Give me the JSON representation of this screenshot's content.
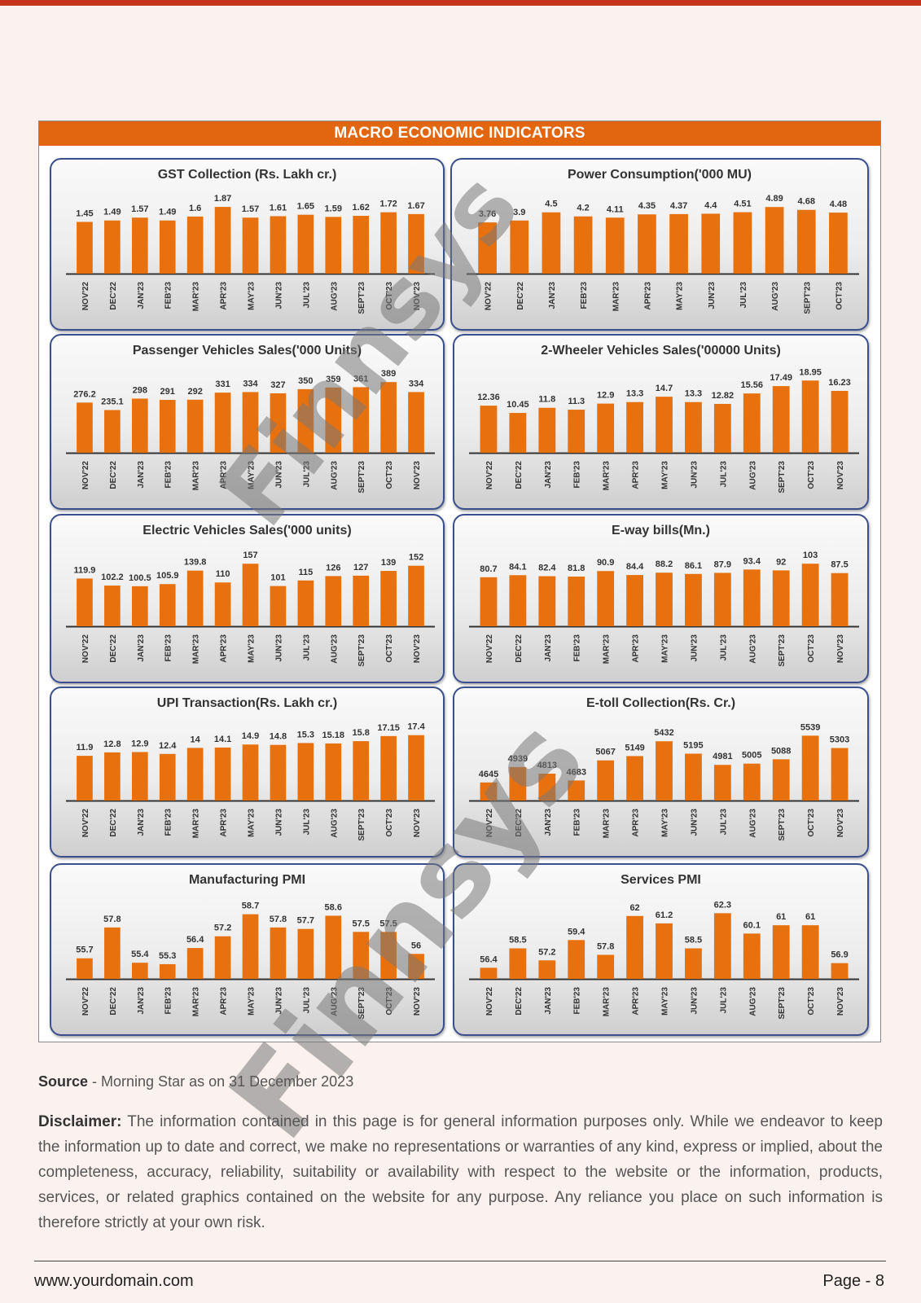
{
  "header": {
    "title": "MACRO ECONOMIC INDICATORS"
  },
  "watermark": {
    "text": "Finnsys"
  },
  "colors": {
    "bar": "#e8710f",
    "accent": "#e2660f",
    "panel_border": "#3a4f8c"
  },
  "chart_data": [
    {
      "type": "bar",
      "title": "GST Collection (Rs. Lakh cr.)",
      "categories": [
        "NOV'22",
        "DEC'22",
        "JAN'23",
        "FEB'23",
        "MAR'23",
        "APR'23",
        "MAY'23",
        "JUN'23",
        "JUL'23",
        "AUG'23",
        "SEPT'23",
        "OCT'23",
        "NOV'23"
      ],
      "values": [
        1.45,
        1.49,
        1.57,
        1.49,
        1.6,
        1.87,
        1.57,
        1.61,
        1.65,
        1.59,
        1.62,
        1.72,
        1.67
      ],
      "labels": [
        "1.45",
        "1.49",
        "1.57",
        "1.49",
        "1.6",
        "1.87",
        "1.57",
        "1.61",
        "1.65",
        "1.59",
        "1.62",
        "1.72",
        "1.67"
      ],
      "ylim": [
        0,
        2.1
      ]
    },
    {
      "type": "bar",
      "title": "Power Consumption('000 MU)",
      "categories": [
        "NOV'22",
        "DEC'22",
        "JAN'23",
        "FEB'23",
        "MAR'23",
        "APR'23",
        "MAY'23",
        "JUN'23",
        "JUL'23",
        "AUG'23",
        "SEPT'23",
        "OCT'23"
      ],
      "values": [
        3.76,
        3.9,
        4.5,
        4.2,
        4.11,
        4.35,
        4.37,
        4.4,
        4.51,
        4.89,
        4.68,
        4.48
      ],
      "labels": [
        "3.76",
        "3.9",
        "4.5",
        "4.2",
        "4.11",
        "4.35",
        "4.37",
        "4.4",
        "4.51",
        "4.89",
        "4.68",
        "4.48"
      ],
      "ylim": [
        0,
        5.5
      ]
    },
    {
      "type": "bar",
      "title": "Passenger Vehicles Sales('000 Units)",
      "categories": [
        "NOV'22",
        "DEC'22",
        "JAN'23",
        "FEB'23",
        "MAR'23",
        "APR'23",
        "MAY'23",
        "JUN'23",
        "JUL'23",
        "AUG'23",
        "SEPT'23",
        "OCT'23",
        "NOV'23"
      ],
      "values": [
        276.2,
        235.1,
        298,
        291,
        292,
        331,
        334,
        327,
        350,
        359,
        361,
        389,
        334
      ],
      "labels": [
        "276.2",
        "235.1",
        "298",
        "291",
        "292",
        "331",
        "334",
        "327",
        "350",
        "359",
        "361",
        "389",
        "334"
      ],
      "ylim": [
        0,
        430
      ]
    },
    {
      "type": "bar",
      "title": "2-Wheeler Vehicles Sales('00000 Units)",
      "categories": [
        "NOV'22",
        "DEC'22",
        "JAN'23",
        "FEB'23",
        "MAR'23",
        "APR'23",
        "MAY'23",
        "JUN'23",
        "JUL'23",
        "AUG'23",
        "SEPT'23",
        "OCT'23",
        "NOV'23"
      ],
      "values": [
        12.36,
        10.45,
        11.8,
        11.3,
        12.9,
        13.3,
        14.7,
        13.3,
        12.82,
        15.56,
        17.49,
        18.95,
        16.23
      ],
      "labels": [
        "12.36",
        "10.45",
        "11.8",
        "11.3",
        "12.9",
        "13.3",
        "14.7",
        "13.3",
        "12.82",
        "15.56",
        "17.49",
        "18.95",
        "16.23"
      ],
      "ylim": [
        0,
        20.5
      ]
    },
    {
      "type": "bar",
      "title": "Electric Vehicles Sales('000 units)",
      "categories": [
        "NOV'22",
        "DEC'22",
        "JAN'23",
        "FEB'23",
        "MAR'23",
        "APR'23",
        "MAY'23",
        "JUN'23",
        "JUL'23",
        "AUG'23",
        "SEPT'23",
        "OCT'23",
        "NOV'23"
      ],
      "values": [
        119.9,
        102.2,
        100.5,
        105.9,
        139.8,
        110,
        157,
        101,
        115,
        126,
        127,
        139,
        152
      ],
      "labels": [
        "119.9",
        "102.2",
        "100.5",
        "105.9",
        "139.8",
        "110",
        "157",
        "101",
        "115",
        "126",
        "127",
        "139",
        "152"
      ],
      "ylim": [
        0,
        180
      ]
    },
    {
      "type": "bar",
      "title": "E-way bills(Mn.)",
      "categories": [
        "NOV'22",
        "DEC'22",
        "JAN'23",
        "FEB'23",
        "MAR'23",
        "APR'23",
        "MAY'23",
        "JUN'23",
        "JUL'23",
        "AUG'23",
        "SEPT'23",
        "OCT'23",
        "NOV'23"
      ],
      "values": [
        80.7,
        84.1,
        82.4,
        81.8,
        90.9,
        84.4,
        88.2,
        86.1,
        87.9,
        93.4,
        92,
        103,
        87.5
      ],
      "labels": [
        "80.7",
        "84.1",
        "82.4",
        "81.8",
        "90.9",
        "84.4",
        "88.2",
        "86.1",
        "87.9",
        "93.4",
        "92",
        "103",
        "87.5"
      ],
      "ylim": [
        0,
        118
      ]
    },
    {
      "type": "bar",
      "title": "UPI Transaction(Rs. Lakh cr.)",
      "categories": [
        "NOV'22",
        "DEC'22",
        "JAN'23",
        "FEB'23",
        "MAR'23",
        "APR'23",
        "MAY'23",
        "JUN'23",
        "JUL'23",
        "AUG'23",
        "SEPT'23",
        "OCT'23",
        "NOV'23"
      ],
      "values": [
        11.9,
        12.8,
        12.9,
        12.4,
        14,
        14.1,
        14.9,
        14.8,
        15.3,
        15.18,
        15.8,
        17.15,
        17.4
      ],
      "labels": [
        "11.9",
        "12.8",
        "12.9",
        "12.4",
        "14",
        "14.1",
        "14.9",
        "14.8",
        "15.3",
        "15.18",
        "15.8",
        "17.15",
        "17.4"
      ],
      "ylim": [
        0,
        19.5
      ]
    },
    {
      "type": "bar",
      "title": "E-toll Collection(Rs. Cr.)",
      "categories": [
        "NOV'22",
        "DEC'22",
        "JAN'23",
        "FEB'23",
        "MAR'23",
        "APR'23",
        "MAY'23",
        "JUN'23",
        "JUL'23",
        "AUG'23",
        "SEPT'23",
        "OCT'23",
        "NOV'23"
      ],
      "values": [
        4645,
        4939,
        4813,
        4683,
        5067,
        5149,
        5432,
        5195,
        4981,
        5005,
        5088,
        5539,
        5303
      ],
      "labels": [
        "4645",
        "4939",
        "4813",
        "4683",
        "5067",
        "5149",
        "5432",
        "5195",
        "4981",
        "5005",
        "5088",
        "5539",
        "5303"
      ],
      "ylim": [
        4300,
        5700
      ]
    },
    {
      "type": "bar",
      "title": "Manufacturing PMI",
      "categories": [
        "NOV'22",
        "DEC'22",
        "JAN'23",
        "FEB'23",
        "MAR'23",
        "APR'23",
        "MAY'23",
        "JUN'23",
        "JUL'23",
        "AUG'23",
        "SEPT'23",
        "OCT'23",
        "NOV'23"
      ],
      "values": [
        55.7,
        57.8,
        55.4,
        55.3,
        56.4,
        57.2,
        58.7,
        57.8,
        57.7,
        58.6,
        57.5,
        57.5,
        56
      ],
      "labels": [
        "55.7",
        "57.8",
        "55.4",
        "55.3",
        "56.4",
        "57.2",
        "58.7",
        "57.8",
        "57.7",
        "58.6",
        "57.5",
        "57.5",
        "56"
      ],
      "ylim": [
        54.3,
        59.4
      ]
    },
    {
      "type": "bar",
      "title": "Services PMI",
      "categories": [
        "NOV'22",
        "DEC'22",
        "JAN'23",
        "FEB'23",
        "MAR'23",
        "APR'23",
        "MAY'23",
        "JUN'23",
        "JUL'23",
        "AUG'23",
        "SEPT'23",
        "OCT'23",
        "NOV'23"
      ],
      "values": [
        56.4,
        58.5,
        57.2,
        59.4,
        57.8,
        62,
        61.2,
        58.5,
        62.3,
        60.1,
        61,
        61,
        56.9
      ],
      "labels": [
        "56.4",
        "58.5",
        "57.2",
        "59.4",
        "57.8",
        "62",
        "61.2",
        "58.5",
        "62.3",
        "60.1",
        "61",
        "61",
        "56.9"
      ],
      "ylim": [
        55.2,
        63.3
      ]
    }
  ],
  "source": {
    "label": "Source",
    "text": " - Morning Star as on 31 December 2023"
  },
  "disclaimer": {
    "label": "Disclaimer:",
    "text": " The information contained in this page is for general information purposes only. While we endeavor to keep the information up to date and correct, we make no representations or warranties of any kind, express or implied, about the completeness, accuracy, reliability, suitability or availability with respect to the website or the information, products, services, or related graphics contained on the website for any purpose. Any reliance you place on such information is therefore strictly at your own risk."
  },
  "footer": {
    "domain": "www.yourdomain.com",
    "page": "Page - 8"
  }
}
